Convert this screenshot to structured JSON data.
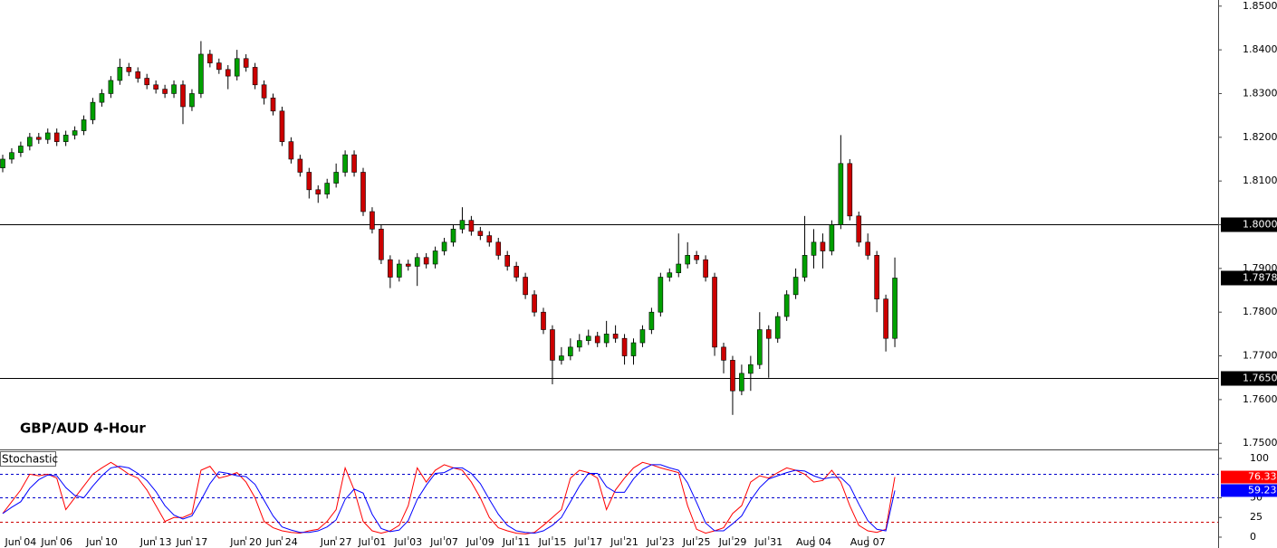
{
  "chart_data": [
    {
      "type": "candlestick",
      "title": "GBP/AUD 4-Hour",
      "categories": [
        null,
        null,
        "Jun 04",
        null,
        null,
        null,
        "Jun 06",
        null,
        null,
        null,
        null,
        "Jun 10",
        null,
        null,
        null,
        null,
        null,
        "Jun 13",
        null,
        null,
        null,
        "Jun 17",
        null,
        null,
        null,
        null,
        null,
        "Jun 20",
        null,
        null,
        null,
        "Jun 24",
        null,
        null,
        null,
        null,
        null,
        "Jun 27",
        null,
        null,
        null,
        "Jul 01",
        null,
        null,
        null,
        "Jul 03",
        null,
        null,
        null,
        "Jul 07",
        null,
        null,
        null,
        "Jul 09",
        null,
        null,
        null,
        "Jul 11",
        null,
        null,
        null,
        "Jul 15",
        null,
        null,
        null,
        "Jul 17",
        null,
        null,
        null,
        "Jul 21",
        null,
        null,
        null,
        "Jul 23",
        null,
        null,
        null,
        "Jul 25",
        null,
        null,
        null,
        "Jul 29",
        null,
        null,
        null,
        "Jul 31",
        null,
        null,
        null,
        null,
        "Aug 04",
        null,
        null,
        null,
        null,
        null,
        "Aug 07",
        null,
        null,
        null
      ],
      "open": [
        1.813,
        1.815,
        1.8165,
        1.818,
        1.82,
        1.8195,
        1.821,
        1.819,
        1.8205,
        1.8215,
        1.824,
        1.828,
        1.83,
        1.833,
        1.836,
        1.835,
        1.8335,
        1.832,
        1.831,
        1.83,
        1.832,
        1.827,
        1.83,
        1.839,
        1.837,
        1.8355,
        1.834,
        1.838,
        1.836,
        1.832,
        1.829,
        1.826,
        1.819,
        1.815,
        1.812,
        1.808,
        1.807,
        1.8095,
        1.812,
        1.816,
        1.812,
        1.803,
        1.799,
        1.792,
        1.788,
        1.791,
        1.7905,
        1.7925,
        1.791,
        1.794,
        1.796,
        1.799,
        1.801,
        1.7985,
        1.7975,
        1.796,
        1.793,
        1.7905,
        1.788,
        1.784,
        1.78,
        1.776,
        1.769,
        1.77,
        1.772,
        1.7735,
        1.7745,
        1.773,
        1.775,
        1.774,
        1.77,
        1.773,
        1.776,
        1.78,
        1.788,
        1.789,
        1.791,
        1.793,
        1.792,
        1.788,
        1.772,
        1.769,
        1.762,
        1.766,
        1.768,
        1.776,
        1.774,
        1.779,
        1.784,
        1.788,
        1.793,
        1.796,
        1.794,
        1.8,
        1.814,
        1.802,
        1.796,
        1.793,
        1.783,
        1.774
      ],
      "high": [
        1.816,
        1.8175,
        1.819,
        1.821,
        1.821,
        1.822,
        1.822,
        1.8215,
        1.8225,
        1.825,
        1.829,
        1.831,
        1.834,
        1.838,
        1.837,
        1.836,
        1.8345,
        1.833,
        1.832,
        1.833,
        1.833,
        1.831,
        1.842,
        1.84,
        1.838,
        1.8365,
        1.84,
        1.839,
        1.837,
        1.833,
        1.83,
        1.827,
        1.82,
        1.816,
        1.813,
        1.809,
        1.8105,
        1.814,
        1.817,
        1.817,
        1.813,
        1.804,
        1.8,
        1.793,
        1.792,
        1.792,
        1.7935,
        1.7935,
        1.795,
        1.797,
        1.8,
        1.804,
        1.802,
        1.7995,
        1.7985,
        1.797,
        1.794,
        1.7915,
        1.789,
        1.785,
        1.781,
        1.777,
        1.772,
        1.774,
        1.775,
        1.776,
        1.7755,
        1.778,
        1.777,
        1.775,
        1.774,
        1.777,
        1.781,
        1.789,
        1.79,
        1.798,
        1.796,
        1.794,
        1.793,
        1.789,
        1.773,
        1.77,
        1.768,
        1.77,
        1.78,
        1.777,
        1.78,
        1.785,
        1.79,
        1.802,
        1.799,
        1.798,
        1.801,
        1.8205,
        1.815,
        1.803,
        1.798,
        1.794,
        1.784,
        1.7925
      ],
      "low": [
        1.812,
        1.814,
        1.8155,
        1.817,
        1.8185,
        1.8185,
        1.818,
        1.818,
        1.8195,
        1.8205,
        1.823,
        1.827,
        1.829,
        1.832,
        1.834,
        1.8325,
        1.831,
        1.83,
        1.829,
        1.829,
        1.823,
        1.826,
        1.829,
        1.836,
        1.8345,
        1.831,
        1.833,
        1.835,
        1.831,
        1.8275,
        1.825,
        1.818,
        1.814,
        1.811,
        1.806,
        1.805,
        1.806,
        1.8085,
        1.811,
        1.811,
        1.802,
        1.798,
        1.791,
        1.7855,
        1.787,
        1.7895,
        1.786,
        1.79,
        1.79,
        1.793,
        1.795,
        1.798,
        1.7975,
        1.7965,
        1.795,
        1.792,
        1.7895,
        1.787,
        1.783,
        1.779,
        1.775,
        1.7635,
        1.768,
        1.769,
        1.771,
        1.7725,
        1.772,
        1.772,
        1.773,
        1.768,
        1.768,
        1.772,
        1.775,
        1.779,
        1.787,
        1.788,
        1.79,
        1.791,
        1.787,
        1.77,
        1.766,
        1.7565,
        1.761,
        1.762,
        1.767,
        1.765,
        1.773,
        1.778,
        1.783,
        1.787,
        1.79,
        1.79,
        1.793,
        1.799,
        1.801,
        1.795,
        1.792,
        1.78,
        1.771,
        1.772
      ],
      "close": [
        1.815,
        1.8165,
        1.818,
        1.82,
        1.8195,
        1.821,
        1.819,
        1.8205,
        1.8215,
        1.824,
        1.828,
        1.83,
        1.833,
        1.836,
        1.835,
        1.8335,
        1.832,
        1.831,
        1.83,
        1.832,
        1.827,
        1.83,
        1.839,
        1.837,
        1.8355,
        1.834,
        1.838,
        1.836,
        1.832,
        1.829,
        1.826,
        1.819,
        1.815,
        1.812,
        1.808,
        1.807,
        1.8095,
        1.812,
        1.816,
        1.812,
        1.803,
        1.799,
        1.792,
        1.788,
        1.791,
        1.7905,
        1.7925,
        1.791,
        1.794,
        1.796,
        1.799,
        1.801,
        1.7985,
        1.7975,
        1.796,
        1.793,
        1.7905,
        1.788,
        1.784,
        1.78,
        1.776,
        1.769,
        1.77,
        1.772,
        1.7735,
        1.7745,
        1.773,
        1.775,
        1.774,
        1.77,
        1.773,
        1.776,
        1.78,
        1.788,
        1.789,
        1.791,
        1.793,
        1.792,
        1.788,
        1.772,
        1.769,
        1.762,
        1.766,
        1.768,
        1.776,
        1.774,
        1.779,
        1.784,
        1.788,
        1.793,
        1.796,
        1.794,
        1.8,
        1.814,
        1.802,
        1.796,
        1.793,
        1.783,
        1.774,
        1.7878
      ],
      "up_color": "#00a000",
      "down_color": "#cc0000",
      "ylim": [
        1.7486,
        1.8514
      ],
      "yticks": [
        {
          "value": 1.75,
          "label": "1.7500"
        },
        {
          "value": 1.76,
          "label": "1.7600"
        },
        {
          "value": 1.77,
          "label": "1.7700"
        },
        {
          "value": 1.78,
          "label": "1.7800"
        },
        {
          "value": 1.79,
          "label": "1.7900"
        },
        {
          "value": 1.8,
          "label": "1.8000"
        },
        {
          "value": 1.81,
          "label": "1.8100"
        },
        {
          "value": 1.82,
          "label": "1.8200"
        },
        {
          "value": 1.83,
          "label": "1.8300"
        },
        {
          "value": 1.84,
          "label": "1.8400"
        },
        {
          "value": 1.85,
          "label": "1.8500"
        }
      ],
      "levels": [
        {
          "value": 1.8,
          "label": "1.8000"
        },
        {
          "value": 1.765,
          "label": "1.7650"
        }
      ]
    },
    {
      "type": "line",
      "title": "Stochastic",
      "series": [
        {
          "color": "#ff0000",
          "values": [
            30,
            45,
            60,
            80,
            78,
            80,
            75,
            35,
            50,
            65,
            80,
            88,
            95,
            88,
            80,
            75,
            60,
            40,
            20,
            25,
            25,
            30,
            85,
            90,
            75,
            78,
            82,
            70,
            50,
            20,
            12,
            8,
            6,
            5,
            8,
            10,
            20,
            35,
            88,
            60,
            20,
            8,
            5,
            8,
            15,
            40,
            88,
            70,
            85,
            92,
            88,
            85,
            70,
            50,
            25,
            12,
            8,
            5,
            4,
            6,
            15,
            25,
            35,
            75,
            85,
            82,
            75,
            35,
            60,
            75,
            88,
            95,
            92,
            88,
            85,
            82,
            40,
            10,
            5,
            8,
            12,
            30,
            40,
            70,
            78,
            75,
            82,
            88,
            85,
            80,
            70,
            72,
            85,
            70,
            40,
            15,
            8,
            6,
            10,
            76.33
          ]
        },
        {
          "color": "#0000ff",
          "values": [
            30,
            38,
            45,
            62,
            73,
            79,
            78,
            63,
            53,
            50,
            65,
            78,
            88,
            90,
            88,
            81,
            72,
            58,
            40,
            28,
            23,
            27,
            47,
            68,
            83,
            81,
            78,
            77,
            67,
            47,
            27,
            13,
            9,
            6,
            6,
            8,
            13,
            22,
            48,
            61,
            56,
            29,
            11,
            7,
            9,
            21,
            48,
            66,
            81,
            82,
            88,
            88,
            81,
            68,
            48,
            29,
            15,
            8,
            6,
            5,
            8,
            15,
            25,
            45,
            65,
            81,
            81,
            64,
            57,
            57,
            74,
            86,
            92,
            92,
            88,
            85,
            69,
            44,
            18,
            8,
            8,
            17,
            27,
            47,
            63,
            74,
            78,
            82,
            85,
            84,
            78,
            74,
            76,
            76,
            65,
            42,
            21,
            10,
            8,
            59.23
          ]
        }
      ],
      "ylim": [
        -13.8,
        110.3
      ],
      "yticks": [
        0,
        25,
        50,
        100
      ],
      "levels": [
        80,
        50,
        20
      ],
      "level_colors": [
        "#0000cc",
        "#0000cc",
        "#cc0000"
      ]
    }
  ]
}
